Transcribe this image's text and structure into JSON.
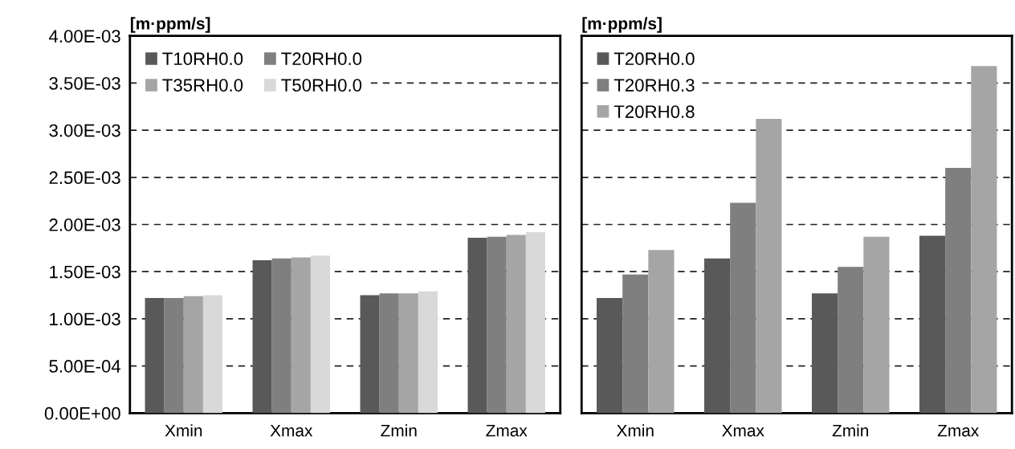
{
  "chart_data": [
    {
      "type": "bar",
      "title": "[m·ppm/s]",
      "categories": [
        "Xmin",
        "Xmax",
        "Zmin",
        "Zmax"
      ],
      "series": [
        {
          "name": "T10RH0.0",
          "color": "#595959",
          "values": [
            0.00122,
            0.00162,
            0.00125,
            0.00186
          ]
        },
        {
          "name": "T20RH0.0",
          "color": "#7f7f7f",
          "values": [
            0.00122,
            0.00164,
            0.00127,
            0.00187
          ]
        },
        {
          "name": "T35RH0.0",
          "color": "#a5a5a5",
          "values": [
            0.00124,
            0.00165,
            0.00127,
            0.00189
          ]
        },
        {
          "name": "T50RH0.0",
          "color": "#d9d9d9",
          "values": [
            0.00125,
            0.00167,
            0.00129,
            0.00192
          ]
        }
      ],
      "ylim": [
        0,
        0.004
      ],
      "yticks": [
        {
          "value": 0,
          "label": "0.00E+00"
        },
        {
          "value": 0.0005,
          "label": "5.00E-04"
        },
        {
          "value": 0.001,
          "label": "1.00E-03"
        },
        {
          "value": 0.0015,
          "label": "1.50E-03"
        },
        {
          "value": 0.002,
          "label": "2.00E-03"
        },
        {
          "value": 0.0025,
          "label": "2.50E-03"
        },
        {
          "value": 0.003,
          "label": "3.00E-03"
        },
        {
          "value": 0.0035,
          "label": "3.50E-03"
        },
        {
          "value": 0.004,
          "label": "4.00E-03"
        }
      ],
      "grid": "y",
      "legend": "top left"
    },
    {
      "type": "bar",
      "title": "[m·ppm/s]",
      "categories": [
        "Xmin",
        "Xmax",
        "Zmin",
        "Zmax"
      ],
      "series": [
        {
          "name": "T20RH0.0",
          "color": "#595959",
          "values": [
            0.00122,
            0.00164,
            0.00127,
            0.00188
          ]
        },
        {
          "name": "T20RH0.3",
          "color": "#7f7f7f",
          "values": [
            0.00147,
            0.00223,
            0.00155,
            0.0026
          ]
        },
        {
          "name": "T20RH0.8",
          "color": "#a5a5a5",
          "values": [
            0.00173,
            0.00312,
            0.00187,
            0.00368
          ]
        }
      ],
      "ylim": [
        0,
        0.004
      ],
      "yticks": [
        0,
        0.0005,
        0.001,
        0.0015,
        0.002,
        0.0025,
        0.003,
        0.0035,
        0.004
      ],
      "grid": "y",
      "legend": "top left",
      "tick_labels": "x"
    }
  ]
}
